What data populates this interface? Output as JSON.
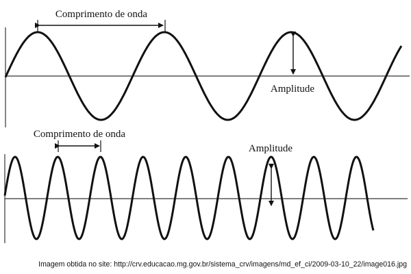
{
  "top_diagram": {
    "wavelength_label": "Comprimento de onda",
    "amplitude_label": "Amplitude"
  },
  "bottom_diagram": {
    "wavelength_label": "Comprimento de onda",
    "amplitude_label": "Amplitude"
  },
  "caption": "Imagem obtida no site: http://crv.educacao.mg.gov.br/sistema_crv/imagens/md_ef_ci/2009-03-10_22/image016.jpg",
  "colors": {
    "ink": "#111111",
    "background": "#ffffff"
  }
}
